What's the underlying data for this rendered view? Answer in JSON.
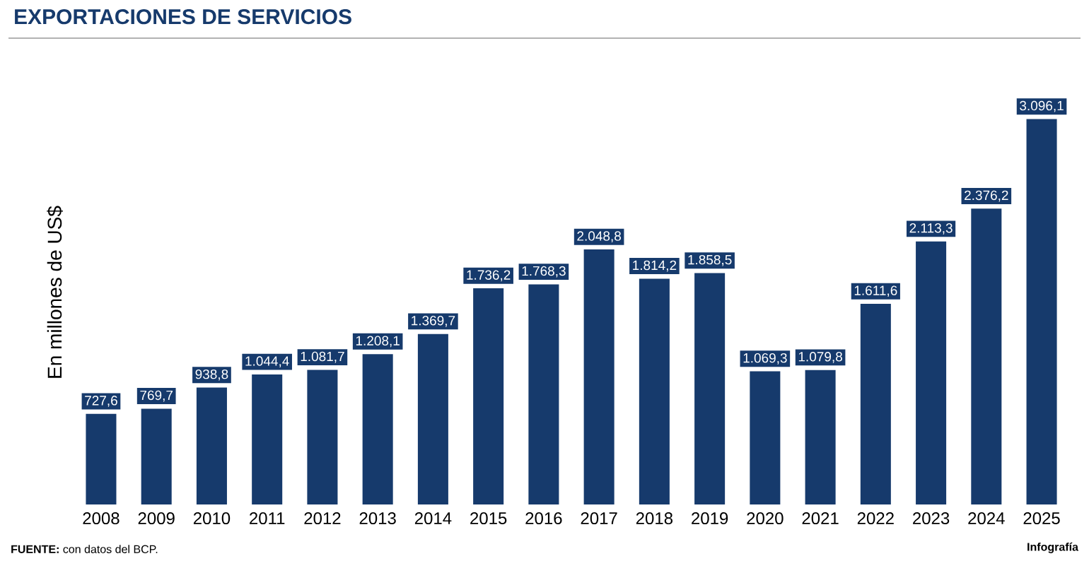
{
  "chart_data": {
    "type": "bar",
    "title": "EXPORTACIONES DE SERVICIOS",
    "ylabel": "En millones de US$",
    "categories": [
      "2008",
      "2009",
      "2010",
      "2011",
      "2012",
      "2013",
      "2014",
      "2015",
      "2016",
      "2017",
      "2018",
      "2019",
      "2020",
      "2021",
      "2022",
      "2023",
      "2024",
      "2025"
    ],
    "values": [
      727.6,
      769.7,
      938.8,
      1044.4,
      1081.7,
      1208.1,
      1369.7,
      1736.2,
      1768.3,
      2048.8,
      1814.2,
      1858.5,
      1069.3,
      1079.8,
      1611.6,
      2113.3,
      2376.2,
      3096.1
    ],
    "value_labels": [
      "727,6",
      "769,7",
      "938,8",
      "1.044,4",
      "1.081,7",
      "1.208,1",
      "1.369,7",
      "1.736,2",
      "1.768,3",
      "2.048,8",
      "1.814,2",
      "1.858,5",
      "1.069,3",
      "1.079,8",
      "1.611,6",
      "2.113,3",
      "2.376,2",
      "3.096,1"
    ],
    "color": "#163a6c",
    "annotations": [
      "**FUENTE:** con datos del BCP.",
      "Infografía"
    ]
  }
}
